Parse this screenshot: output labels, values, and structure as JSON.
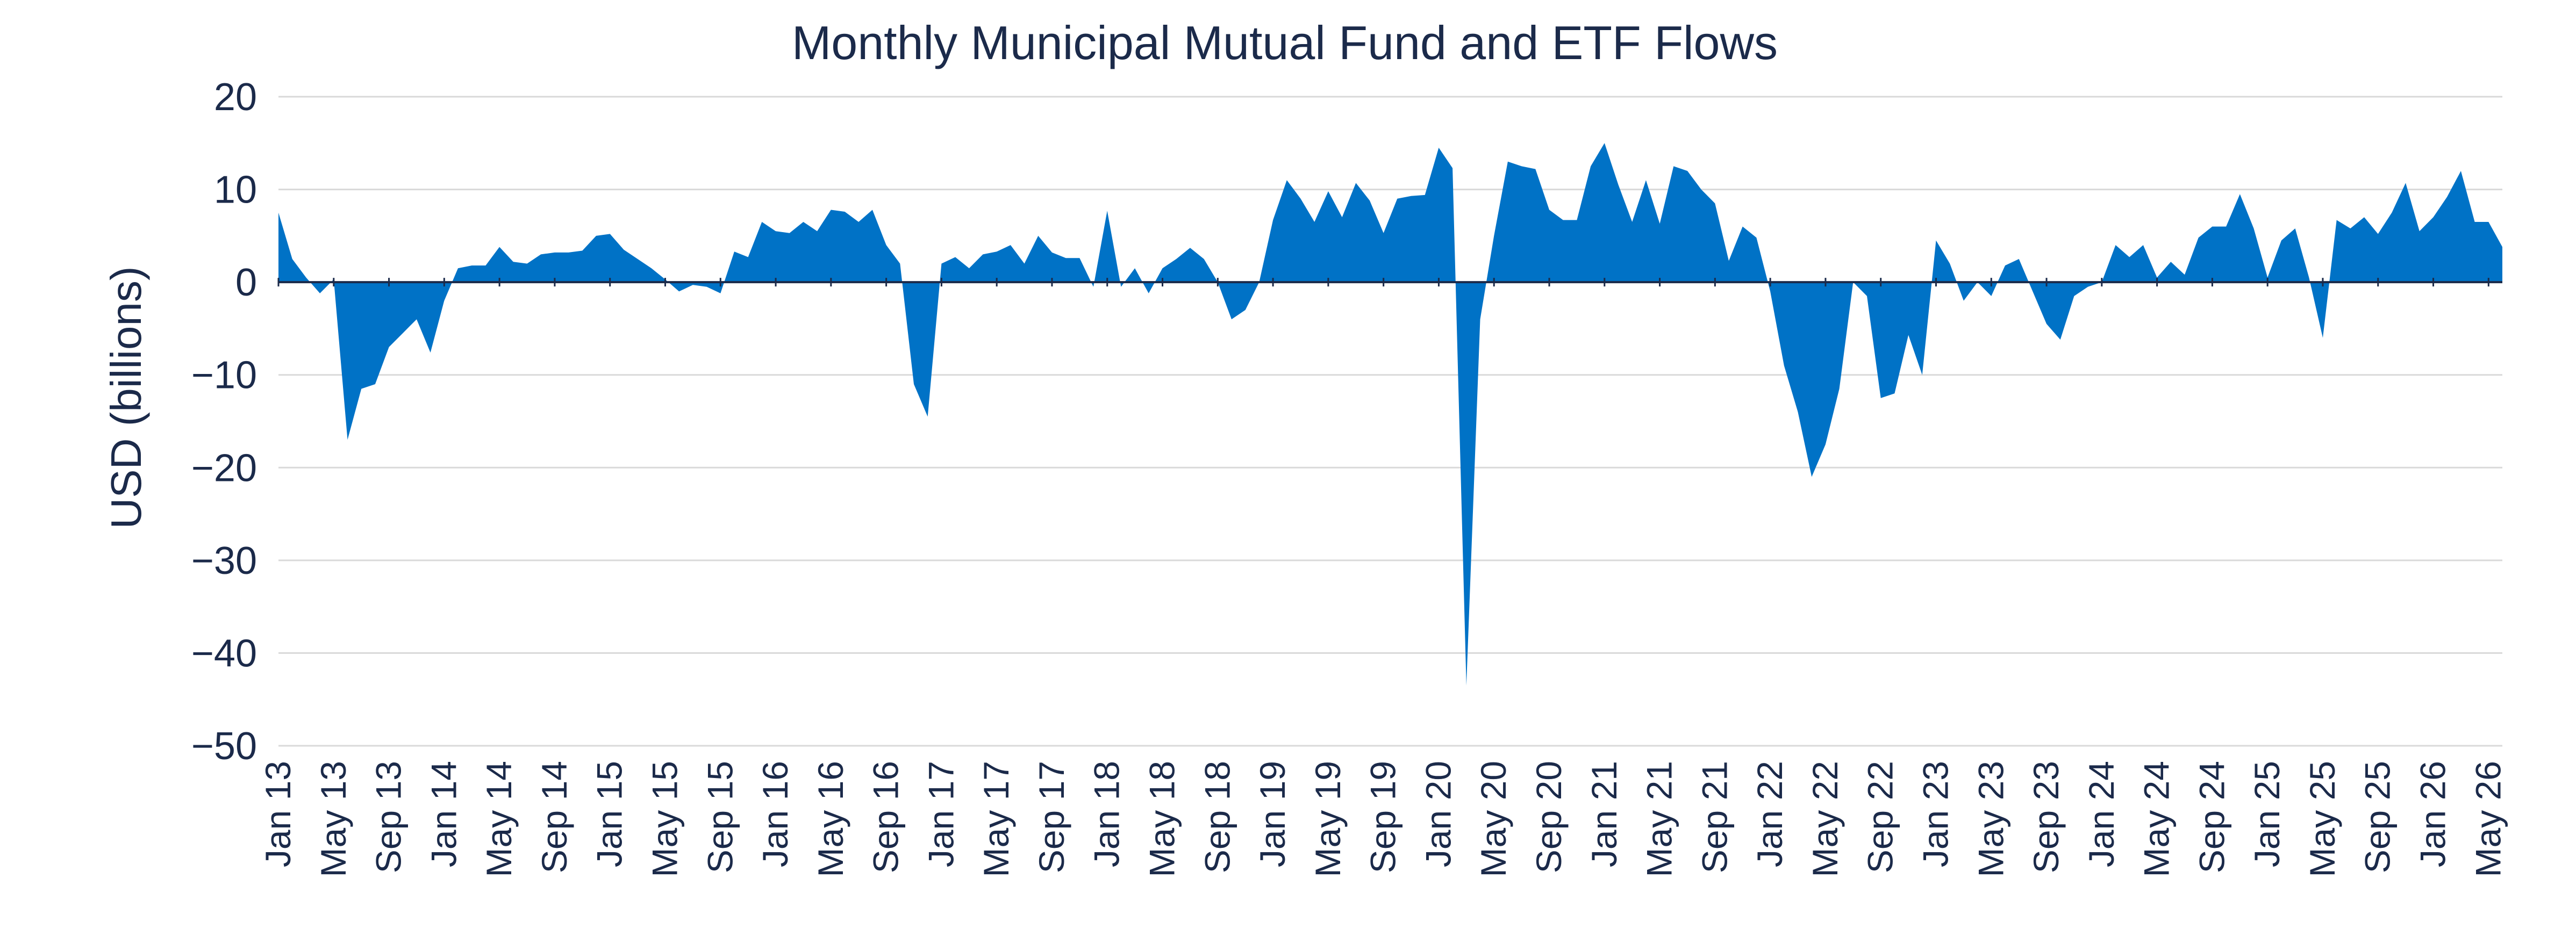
{
  "chart_data": {
    "type": "area",
    "title": "Monthly Municipal Mutual Fund and ETF Flows",
    "ylabel": "USD (billions)",
    "xlabel": "",
    "ylim": [
      -50,
      20
    ],
    "y_ticks": [
      "20",
      "10",
      "0",
      "−10",
      "−20",
      "−30",
      "−40",
      "−50"
    ],
    "y_tick_values": [
      20,
      10,
      0,
      -10,
      -20,
      -30,
      -40,
      -50
    ],
    "x_tick_labels": [
      "Jan 13",
      "May 13",
      "Sep 13",
      "Jan 14",
      "May 14",
      "Sep 14",
      "Jan 15",
      "May 15",
      "Sep 15",
      "Jan 16",
      "May 16",
      "Sep 16",
      "Jan 17",
      "May 17",
      "Sep 17",
      "Jan 18",
      "May 18",
      "Sep 18",
      "Jan 19",
      "May 19",
      "Sep 19",
      "Jan 20",
      "May 20",
      "Sep 20",
      "Jan 21",
      "May 21",
      "Sep 21",
      "Jan 22",
      "May 22",
      "Sep 22",
      "Jan 23",
      "May 23",
      "Sep 23",
      "Jan 24",
      "May 24",
      "Sep 24",
      "Jan 25",
      "May 25",
      "Sep 25",
      "Jan 26",
      "May 26"
    ],
    "grid": true,
    "fill_color": "#0072c6",
    "text_color": "#1b2a4a",
    "x_start": "Jan 13",
    "x_end": "May 26",
    "series": [
      {
        "values": [
          7.5,
          2.5,
          0.5,
          -1.2,
          0.3,
          -17,
          -11.5,
          -11,
          -7,
          -5.5,
          -4,
          -7.6,
          -2,
          1.5,
          1.8,
          1.8,
          3.8,
          2.2,
          2,
          3,
          3.2,
          3.2,
          3.4,
          5,
          5.2,
          3.5,
          2.5,
          1.5,
          0.3,
          -1,
          -0.3,
          -0.5,
          -1.2,
          3.3,
          2.7,
          6.5,
          5.5,
          5.3,
          6.5,
          5.5,
          7.8,
          7.6,
          6.5,
          7.8,
          4,
          2,
          -11,
          -14.5,
          2,
          2.7,
          1.5,
          3,
          3.3,
          4,
          2,
          5,
          3.2,
          2.6,
          2.6,
          -0.5,
          7.7,
          -0.5,
          1.5,
          -1.2,
          1.5,
          2.5,
          3.7,
          2.5,
          0,
          -4,
          -3,
          0,
          6.7,
          11,
          9,
          6.5,
          9.8,
          7,
          10.7,
          8.8,
          5.3,
          9,
          9.3,
          9.4,
          14.5,
          12.3,
          -43.5,
          -4,
          5,
          13,
          12.5,
          12.2,
          7.8,
          6.7,
          6.7,
          12.5,
          15,
          10.5,
          6.5,
          11,
          6.3,
          12.5,
          12,
          10,
          8.5,
          2.3,
          6,
          4.8,
          -1,
          -9,
          -14,
          -21,
          -17.5,
          -11.5,
          0,
          -1.5,
          -12.5,
          -12,
          -5.7,
          -10,
          4.5,
          2,
          -2,
          0,
          -1.5,
          1.8,
          2.5,
          -1,
          -4.5,
          -6.2,
          -1.5,
          -0.5,
          0,
          4,
          2.7,
          4,
          0.5,
          2.2,
          0.8,
          4.8,
          6,
          6,
          9.5,
          5.8,
          0.5,
          4.5,
          5.8,
          0.5,
          -6,
          6.7,
          5.8,
          7,
          5.2,
          7.5,
          10.7,
          5.5,
          7,
          9.2,
          12,
          6.5,
          6.5,
          3.8
        ]
      }
    ]
  }
}
